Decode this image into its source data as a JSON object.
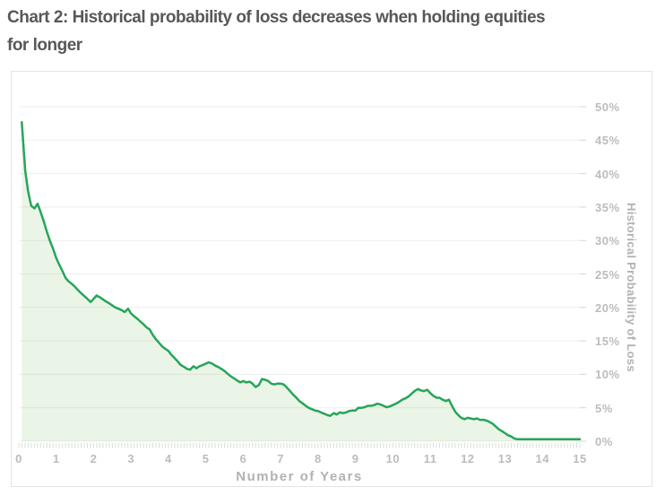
{
  "page": {
    "title_line1": "Chart 2: Historical probability of loss decreases when holding equities",
    "title_line2": "for longer"
  },
  "colors": {
    "title_text": "#57585a",
    "axis_title_text": "#b2b2b2",
    "tick_text": "#bcbcbc",
    "grid_line": "#ededed",
    "grid_end_tick": "#d4d4d4",
    "minor_tick": "#d6e0d2",
    "line_green": "#26a55a",
    "area_fill": "rgba(111,186,86,0.14)",
    "box_border": "#e4e4e4"
  },
  "chart_data": {
    "type": "area",
    "title": "Chart 2: Historical probability of loss decreases when holding equities for longer",
    "xlabel": "Number of Years",
    "ylabel": "Historical Probability of Loss",
    "xlim": [
      0,
      15
    ],
    "ylim": [
      0,
      50
    ],
    "y_unit": "%",
    "grid": "horizontal-only",
    "legend": "none",
    "y_tick_step": 5,
    "minor_x_ticks_per_year": 12,
    "x_tick_labels": [
      "0",
      "1",
      "2",
      "3",
      "4",
      "5",
      "6",
      "7",
      "8",
      "9",
      "10",
      "11",
      "12",
      "13",
      "14",
      "15"
    ],
    "y_tick_labels": [
      "50%",
      "45%",
      "40%",
      "35%",
      "30%",
      "25%",
      "20%",
      "15%",
      "10%",
      "5%",
      "0%"
    ],
    "series": [
      {
        "name": "Historical probability of loss",
        "color": "#26a55a",
        "points": [
          [
            0.08,
            47.7
          ],
          [
            0.17,
            40.5
          ],
          [
            0.25,
            37.3
          ],
          [
            0.33,
            35.2
          ],
          [
            0.42,
            34.8
          ],
          [
            0.5,
            35.5
          ],
          [
            0.58,
            34.3
          ],
          [
            0.67,
            32.8
          ],
          [
            0.75,
            31.3
          ],
          [
            0.83,
            30.0
          ],
          [
            0.92,
            28.7
          ],
          [
            1,
            27.4
          ],
          [
            1.08,
            26.4
          ],
          [
            1.17,
            25.4
          ],
          [
            1.25,
            24.4
          ],
          [
            1.33,
            23.9
          ],
          [
            1.42,
            23.5
          ],
          [
            1.5,
            23.1
          ],
          [
            1.58,
            22.6
          ],
          [
            1.67,
            22.1
          ],
          [
            1.75,
            21.7
          ],
          [
            1.83,
            21.3
          ],
          [
            1.92,
            20.8
          ],
          [
            2,
            21.3
          ],
          [
            2.08,
            21.8
          ],
          [
            2.17,
            21.5
          ],
          [
            2.25,
            21.2
          ],
          [
            2.33,
            20.9
          ],
          [
            2.42,
            20.6
          ],
          [
            2.5,
            20.3
          ],
          [
            2.58,
            20.0
          ],
          [
            2.67,
            19.8
          ],
          [
            2.75,
            19.6
          ],
          [
            2.83,
            19.3
          ],
          [
            2.92,
            19.8
          ],
          [
            3,
            19.1
          ],
          [
            3.08,
            18.7
          ],
          [
            3.17,
            18.3
          ],
          [
            3.25,
            17.9
          ],
          [
            3.33,
            17.5
          ],
          [
            3.42,
            17.0
          ],
          [
            3.5,
            16.7
          ],
          [
            3.58,
            15.9
          ],
          [
            3.67,
            15.2
          ],
          [
            3.75,
            14.7
          ],
          [
            3.83,
            14.2
          ],
          [
            3.92,
            13.8
          ],
          [
            4,
            13.5
          ],
          [
            4.08,
            12.9
          ],
          [
            4.17,
            12.4
          ],
          [
            4.25,
            11.9
          ],
          [
            4.33,
            11.4
          ],
          [
            4.42,
            11.1
          ],
          [
            4.5,
            10.8
          ],
          [
            4.58,
            10.7
          ],
          [
            4.67,
            11.2
          ],
          [
            4.75,
            10.9
          ],
          [
            4.83,
            11.2
          ],
          [
            4.92,
            11.4
          ],
          [
            5,
            11.6
          ],
          [
            5.08,
            11.8
          ],
          [
            5.17,
            11.6
          ],
          [
            5.25,
            11.3
          ],
          [
            5.33,
            11.1
          ],
          [
            5.42,
            10.8
          ],
          [
            5.5,
            10.5
          ],
          [
            5.58,
            10.1
          ],
          [
            5.67,
            9.7
          ],
          [
            5.75,
            9.4
          ],
          [
            5.83,
            9.1
          ],
          [
            5.92,
            8.8
          ],
          [
            6,
            9.0
          ],
          [
            6.08,
            8.8
          ],
          [
            6.17,
            8.9
          ],
          [
            6.25,
            8.6
          ],
          [
            6.33,
            8.1
          ],
          [
            6.42,
            8.4
          ],
          [
            6.5,
            9.3
          ],
          [
            6.58,
            9.2
          ],
          [
            6.67,
            9.0
          ],
          [
            6.75,
            8.6
          ],
          [
            6.83,
            8.5
          ],
          [
            6.92,
            8.6
          ],
          [
            7,
            8.6
          ],
          [
            7.08,
            8.5
          ],
          [
            7.17,
            8.0
          ],
          [
            7.25,
            7.5
          ],
          [
            7.33,
            7.0
          ],
          [
            7.42,
            6.5
          ],
          [
            7.5,
            6.0
          ],
          [
            7.58,
            5.7
          ],
          [
            7.67,
            5.3
          ],
          [
            7.75,
            5.0
          ],
          [
            7.83,
            4.8
          ],
          [
            7.92,
            4.6
          ],
          [
            8,
            4.5
          ],
          [
            8.08,
            4.3
          ],
          [
            8.17,
            4.1
          ],
          [
            8.25,
            3.9
          ],
          [
            8.33,
            3.8
          ],
          [
            8.42,
            4.2
          ],
          [
            8.5,
            4.0
          ],
          [
            8.58,
            4.3
          ],
          [
            8.67,
            4.2
          ],
          [
            8.75,
            4.3
          ],
          [
            8.83,
            4.5
          ],
          [
            8.92,
            4.6
          ],
          [
            9,
            4.6
          ],
          [
            9.08,
            5.0
          ],
          [
            9.17,
            5.0
          ],
          [
            9.25,
            5.1
          ],
          [
            9.33,
            5.3
          ],
          [
            9.42,
            5.3
          ],
          [
            9.5,
            5.4
          ],
          [
            9.58,
            5.6
          ],
          [
            9.67,
            5.5
          ],
          [
            9.75,
            5.3
          ],
          [
            9.83,
            5.1
          ],
          [
            9.92,
            5.2
          ],
          [
            10,
            5.4
          ],
          [
            10.08,
            5.6
          ],
          [
            10.17,
            5.9
          ],
          [
            10.25,
            6.2
          ],
          [
            10.33,
            6.4
          ],
          [
            10.42,
            6.7
          ],
          [
            10.5,
            7.1
          ],
          [
            10.58,
            7.5
          ],
          [
            10.67,
            7.8
          ],
          [
            10.75,
            7.6
          ],
          [
            10.83,
            7.5
          ],
          [
            10.92,
            7.7
          ],
          [
            11,
            7.2
          ],
          [
            11.08,
            6.8
          ],
          [
            11.17,
            6.5
          ],
          [
            11.25,
            6.5
          ],
          [
            11.33,
            6.2
          ],
          [
            11.42,
            6.0
          ],
          [
            11.5,
            6.2
          ],
          [
            11.58,
            5.3
          ],
          [
            11.67,
            4.4
          ],
          [
            11.75,
            3.9
          ],
          [
            11.83,
            3.5
          ],
          [
            11.92,
            3.3
          ],
          [
            12,
            3.5
          ],
          [
            12.08,
            3.4
          ],
          [
            12.17,
            3.3
          ],
          [
            12.25,
            3.4
          ],
          [
            12.33,
            3.2
          ],
          [
            12.42,
            3.2
          ],
          [
            12.5,
            3.1
          ],
          [
            12.58,
            2.9
          ],
          [
            12.67,
            2.6
          ],
          [
            12.75,
            2.2
          ],
          [
            12.83,
            1.8
          ],
          [
            12.92,
            1.5
          ],
          [
            13,
            1.2
          ],
          [
            13.08,
            0.9
          ],
          [
            13.17,
            0.7
          ],
          [
            13.25,
            0.4
          ],
          [
            13.33,
            0.3
          ],
          [
            13.5,
            0.3
          ],
          [
            13.75,
            0.3
          ],
          [
            14,
            0.3
          ],
          [
            14.25,
            0.3
          ],
          [
            14.5,
            0.3
          ],
          [
            14.75,
            0.3
          ],
          [
            15,
            0.3
          ]
        ]
      }
    ]
  }
}
